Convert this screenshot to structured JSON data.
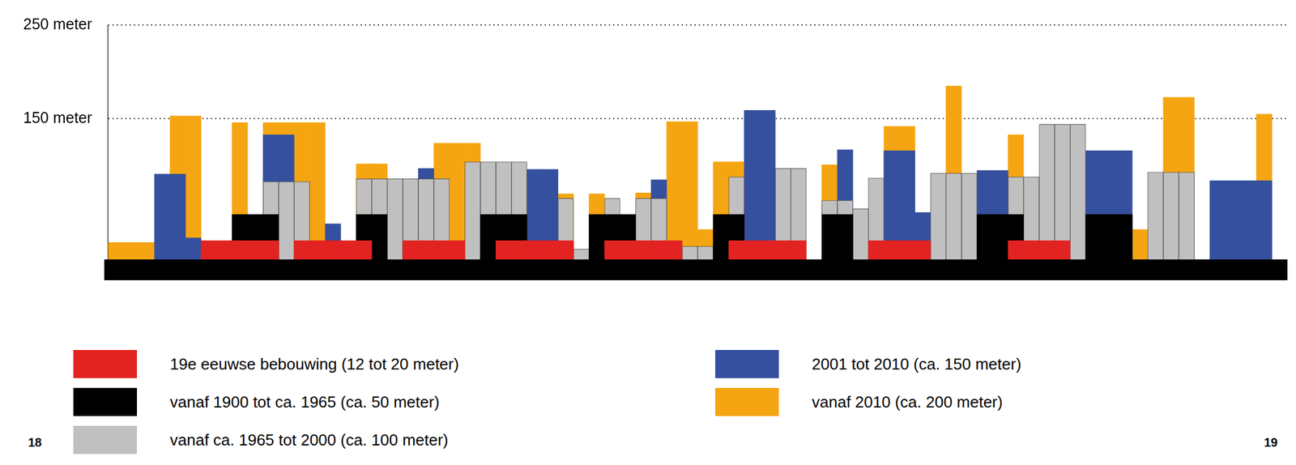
{
  "chart_data": {
    "type": "bar",
    "categories": [
      null,
      null,
      null,
      null,
      null,
      null,
      null,
      null,
      null,
      null,
      null,
      null,
      null,
      null,
      null,
      null,
      null,
      null,
      null,
      null,
      null,
      null,
      null,
      null,
      null,
      null,
      null,
      null,
      null,
      null,
      null,
      null,
      null,
      null,
      null,
      null,
      null,
      null,
      null,
      null,
      null,
      null,
      null,
      null,
      null,
      null,
      null,
      null,
      null,
      null,
      null,
      null,
      null,
      null,
      null,
      null,
      null,
      null,
      null,
      null,
      null,
      null,
      null,
      null,
      null,
      null,
      null,
      null,
      null,
      null,
      null,
      null,
      null,
      null,
      null,
      null
    ],
    "series": [
      {
        "name": "19e eeuwse bebouwing (12 tot 20 meter)",
        "color": "#e32322",
        "values": [
          null,
          null,
          null,
          null,
          null,
          null,
          20,
          20,
          20,
          20,
          20,
          null,
          20,
          20,
          20,
          20,
          20,
          null,
          null,
          20,
          20,
          20,
          20,
          null,
          null,
          20,
          20,
          20,
          20,
          20,
          null,
          null,
          20,
          20,
          20,
          20,
          20,
          null,
          null,
          null,
          20,
          20,
          20,
          20,
          20,
          null,
          null,
          null,
          null,
          20,
          20,
          20,
          20,
          null,
          null,
          null,
          null,
          null,
          20,
          20,
          20,
          20,
          null,
          null,
          null,
          null,
          null,
          null,
          null,
          null,
          null,
          null,
          null,
          null,
          null,
          null
        ]
      },
      {
        "name": "vanaf 1900 tot ca. 1965 (ca. 50 meter)",
        "color": "#000000",
        "values": [
          null,
          null,
          null,
          null,
          null,
          null,
          null,
          null,
          48,
          48,
          48,
          null,
          null,
          null,
          null,
          null,
          48,
          48,
          null,
          null,
          null,
          null,
          null,
          null,
          48,
          48,
          48,
          null,
          null,
          null,
          null,
          48,
          48,
          48,
          null,
          null,
          null,
          null,
          null,
          48,
          48,
          null,
          null,
          null,
          null,
          null,
          48,
          48,
          null,
          null,
          null,
          null,
          null,
          null,
          null,
          null,
          48,
          48,
          48,
          null,
          null,
          null,
          null,
          48,
          48,
          48,
          null,
          null,
          null,
          null,
          null,
          null,
          null,
          null,
          null,
          null
        ]
      },
      {
        "name": "vanaf ca. 1965 tot 2000 (ca. 100 meter)",
        "color": "#c0c0c0",
        "values": [
          null,
          null,
          null,
          null,
          null,
          null,
          null,
          null,
          null,
          null,
          83,
          83,
          83,
          null,
          null,
          null,
          86,
          86,
          86,
          86,
          86,
          86,
          null,
          104,
          104,
          104,
          104,
          null,
          null,
          65,
          11,
          null,
          65,
          null,
          65,
          65,
          null,
          14,
          14,
          null,
          88,
          null,
          null,
          97,
          97,
          null,
          63,
          63,
          54,
          87,
          null,
          null,
          null,
          92,
          92,
          92,
          null,
          null,
          88,
          88,
          144,
          144,
          144,
          null,
          null,
          null,
          null,
          93,
          93,
          93,
          null,
          null,
          null,
          null,
          null,
          null
        ]
      },
      {
        "name": "2001 tot 2010 (ca. 150 meter)",
        "color": "#34509e",
        "values": [
          null,
          null,
          null,
          91,
          91,
          23,
          null,
          null,
          null,
          null,
          133,
          133,
          null,
          null,
          38,
          null,
          null,
          null,
          null,
          null,
          97,
          null,
          null,
          null,
          null,
          null,
          null,
          96,
          96,
          null,
          null,
          null,
          null,
          null,
          null,
          85,
          null,
          null,
          null,
          null,
          null,
          159,
          159,
          null,
          null,
          null,
          null,
          117,
          null,
          null,
          116,
          116,
          50,
          null,
          null,
          null,
          95,
          95,
          null,
          null,
          null,
          null,
          null,
          116,
          116,
          116,
          null,
          null,
          null,
          null,
          null,
          84,
          84,
          84,
          84,
          null
        ]
      },
      {
        "name": "vanaf 2010 (ca. 200 meter)",
        "color": "#f5a511",
        "values": [
          18,
          18,
          18,
          18,
          153,
          153,
          null,
          null,
          146,
          null,
          146,
          146,
          146,
          146,
          null,
          null,
          102,
          102,
          null,
          null,
          null,
          124,
          124,
          124,
          null,
          null,
          null,
          null,
          null,
          70,
          null,
          70,
          null,
          null,
          71,
          null,
          147,
          147,
          32,
          104,
          104,
          null,
          null,
          null,
          null,
          null,
          101,
          null,
          null,
          null,
          142,
          142,
          null,
          null,
          185,
          null,
          null,
          null,
          133,
          null,
          null,
          null,
          null,
          null,
          null,
          null,
          32,
          null,
          173,
          173,
          null,
          null,
          null,
          null,
          155,
          null
        ]
      }
    ],
    "ylim": [
      0,
      250
    ],
    "yticks": [
      {
        "value": 150,
        "label": "150 meter"
      },
      {
        "value": 250,
        "label": "250 meter"
      }
    ],
    "grid": true,
    "tick_labels": "y",
    "legend": "bottom",
    "annotations": [
      "18",
      "19"
    ]
  }
}
